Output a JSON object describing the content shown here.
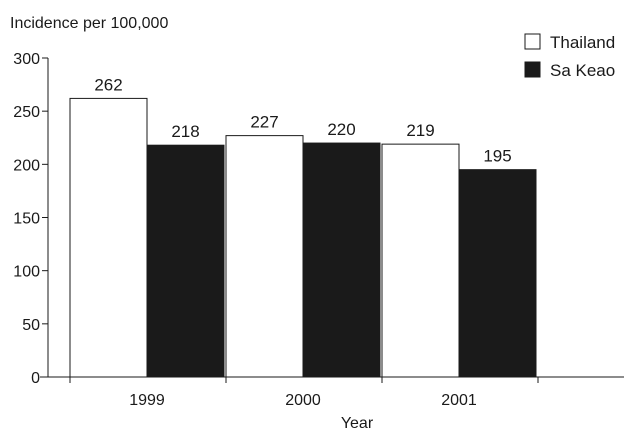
{
  "chart_data": {
    "type": "bar",
    "ylabel": "Incidence per 100,000",
    "xlabel": "Year",
    "categories": [
      "1999",
      "2000",
      "2001"
    ],
    "series": [
      {
        "name": "Thailand",
        "values": [
          262,
          227,
          219
        ],
        "color": "#ffffff"
      },
      {
        "name": "Sa Keao",
        "values": [
          218,
          220,
          195
        ],
        "color": "#1a1a1a"
      }
    ],
    "ylim": [
      0,
      300
    ],
    "yticks": [
      0,
      50,
      100,
      150,
      200,
      250,
      300
    ],
    "grid": false,
    "legend_position": "top-right"
  }
}
